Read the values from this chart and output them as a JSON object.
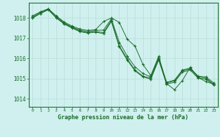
{
  "title": "Graphe pression niveau de la mer (hPa)",
  "background_color": "#cff0ee",
  "grid_color": "#b8ddd8",
  "line_color": "#1a6b2a",
  "text_color": "#1a6b2a",
  "xlim": [
    -0.5,
    23.5
  ],
  "ylim": [
    1013.6,
    1018.75
  ],
  "yticks": [
    1014,
    1015,
    1016,
    1017,
    1018
  ],
  "xtick_labels": [
    "0",
    "1",
    "2",
    "3",
    "4",
    "5",
    "6",
    "7",
    "8",
    "9",
    "10",
    "11",
    "12",
    "13",
    "14",
    "15",
    "16",
    "17",
    "18",
    "19",
    "20",
    "21",
    "22",
    "23"
  ],
  "series": [
    [
      1018.1,
      1018.3,
      1018.45,
      1018.1,
      1017.8,
      1017.6,
      1017.45,
      1017.38,
      1017.42,
      1017.82,
      1018.0,
      1017.78,
      1016.95,
      1016.6,
      1015.7,
      1015.15,
      1016.1,
      1014.75,
      1014.45,
      1014.9,
      1015.55,
      1015.05,
      1014.85,
      1014.72
    ],
    [
      1018.05,
      1018.28,
      1018.45,
      1018.08,
      1017.75,
      1017.55,
      1017.4,
      1017.32,
      1017.38,
      1017.4,
      1017.95,
      1016.8,
      1016.12,
      1015.58,
      1015.25,
      1015.08,
      1016.05,
      1014.82,
      1014.92,
      1015.42,
      1015.52,
      1015.12,
      1015.08,
      1014.78
    ],
    [
      1018.0,
      1018.22,
      1018.42,
      1018.02,
      1017.72,
      1017.52,
      1017.35,
      1017.27,
      1017.32,
      1017.28,
      1017.88,
      1016.62,
      1015.98,
      1015.42,
      1015.12,
      1015.02,
      1015.98,
      1014.78,
      1014.88,
      1015.38,
      1015.48,
      1015.08,
      1015.02,
      1014.72
    ],
    [
      1018.0,
      1018.22,
      1018.4,
      1018.0,
      1017.7,
      1017.5,
      1017.32,
      1017.25,
      1017.3,
      1017.22,
      1017.82,
      1016.57,
      1015.92,
      1015.38,
      1015.08,
      1014.97,
      1015.92,
      1014.72,
      1014.82,
      1015.32,
      1015.42,
      1015.02,
      1014.97,
      1014.67
    ]
  ]
}
